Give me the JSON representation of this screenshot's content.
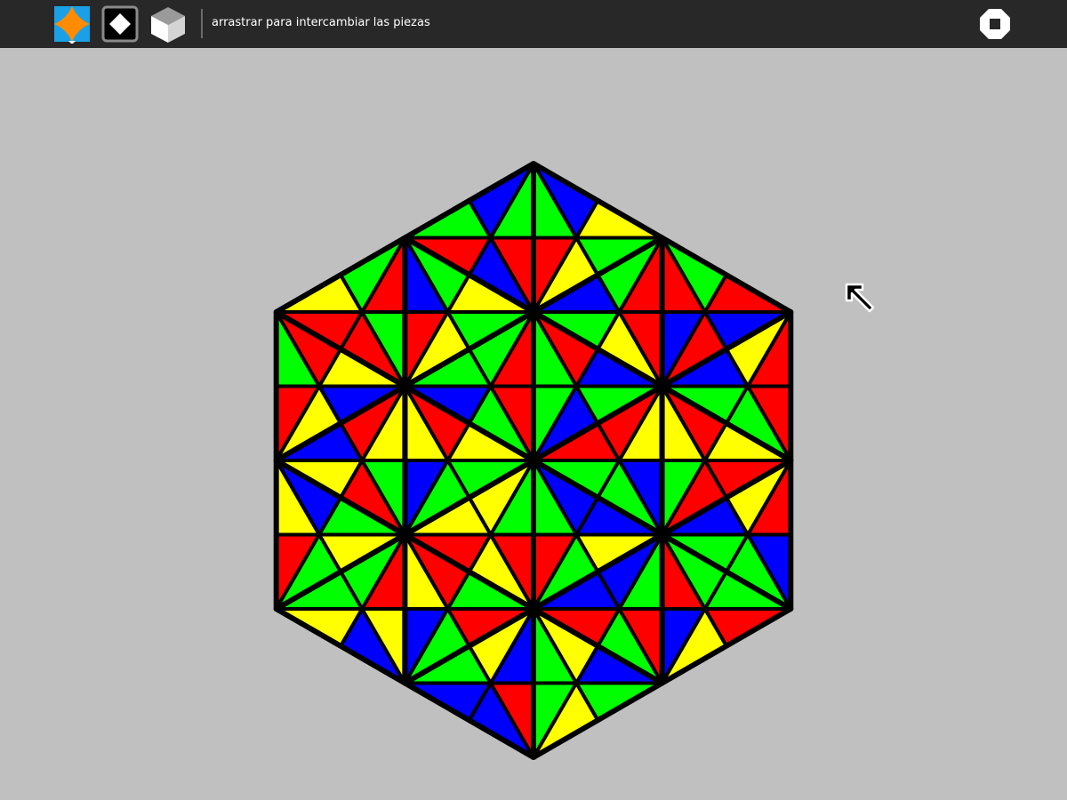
{
  "toolbar": {
    "activity_icon": "activity-pieces-icon",
    "tools": [
      {
        "name": "square-pieces-icon"
      },
      {
        "name": "cube-pieces-icon"
      }
    ],
    "hint_text": "arrastrar para intercambiar las piezas",
    "stop_icon": "stop-icon"
  },
  "colors": {
    "toolbar_bg": "#282828",
    "board_bg": "#c0c0c0",
    "red": "#ff0000",
    "green": "#00ff00",
    "blue": "#0000ff",
    "yellow": "#ffff00",
    "outline": "#000000"
  },
  "puzzle": {
    "type": "hexagonal-tile-swap",
    "tiles": 24,
    "cursor_icon": "arrow-cursor-icon"
  }
}
